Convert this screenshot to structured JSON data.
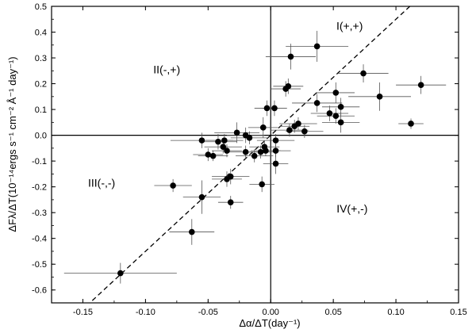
{
  "chart_data": {
    "type": "scatter",
    "title": "",
    "xlabel": "Δα/ΔT(day⁻¹)",
    "ylabel": "ΔFλ/ΔT(10⁻¹⁴ergs s⁻¹ cm⁻² Å⁻¹ day⁻¹)",
    "xlim": [
      -0.175,
      0.15
    ],
    "ylim": [
      -0.65,
      0.5
    ],
    "xticks": [
      -0.15,
      -0.1,
      -0.05,
      0.0,
      0.05,
      0.1,
      0.15
    ],
    "xtick_labels": [
      "-0.15",
      "-0.10",
      "-0.05",
      "0.00",
      "0.05",
      "0.10",
      "0.15"
    ],
    "yticks": [
      0.5,
      0.4,
      0.3,
      0.2,
      0.1,
      0.0,
      -0.1,
      -0.2,
      -0.3,
      -0.4,
      -0.5,
      -0.6
    ],
    "ytick_labels": [
      "0.5",
      "0.4",
      "0.3",
      "0.2",
      "0.1",
      "0.0",
      "-0.1",
      "-0.2",
      "-0.3",
      "-0.4",
      "-0.5",
      "-0.6"
    ],
    "zero_lines": true,
    "grid": false,
    "fit_line": {
      "style": "dashed",
      "slope": 4.5,
      "intercept": 0.0
    },
    "quadrant_labels": [
      {
        "text": "I(+,+)",
        "x": 0.063,
        "y": 0.41
      },
      {
        "text": "II(-,+)",
        "x": -0.083,
        "y": 0.24
      },
      {
        "text": "III(-,-)",
        "x": -0.135,
        "y": -0.2
      },
      {
        "text": "IV(+,-)",
        "x": 0.065,
        "y": -0.3
      }
    ],
    "points": [
      {
        "x": -0.12,
        "y": -0.535,
        "xerr": 0.045,
        "yerr": 0.04
      },
      {
        "x": -0.063,
        "y": -0.375,
        "xerr": 0.018,
        "yerr": 0.05
      },
      {
        "x": -0.078,
        "y": -0.195,
        "xerr": 0.015,
        "yerr": 0.025
      },
      {
        "x": -0.055,
        "y": -0.24,
        "xerr": 0.015,
        "yerr": 0.065
      },
      {
        "x": -0.055,
        "y": -0.02,
        "xerr": 0.025,
        "yerr": 0.03
      },
      {
        "x": -0.05,
        "y": -0.075,
        "xerr": 0.012,
        "yerr": 0.025
      },
      {
        "x": -0.046,
        "y": -0.08,
        "xerr": 0.012,
        "yerr": 0.02
      },
      {
        "x": -0.042,
        "y": -0.025,
        "xerr": 0.015,
        "yerr": 0.03
      },
      {
        "x": -0.038,
        "y": -0.045,
        "xerr": 0.015,
        "yerr": 0.025
      },
      {
        "x": -0.037,
        "y": -0.02,
        "xerr": 0.015,
        "yerr": 0.025
      },
      {
        "x": -0.035,
        "y": -0.06,
        "xerr": 0.012,
        "yerr": 0.025
      },
      {
        "x": -0.035,
        "y": -0.17,
        "xerr": 0.012,
        "yerr": 0.03
      },
      {
        "x": -0.032,
        "y": -0.16,
        "xerr": 0.015,
        "yerr": 0.03
      },
      {
        "x": -0.032,
        "y": -0.26,
        "xerr": 0.01,
        "yerr": 0.025
      },
      {
        "x": -0.027,
        "y": 0.01,
        "xerr": 0.018,
        "yerr": 0.04
      },
      {
        "x": -0.02,
        "y": 0.0,
        "xerr": 0.015,
        "yerr": 0.03
      },
      {
        "x": -0.02,
        "y": -0.065,
        "xerr": 0.015,
        "yerr": 0.025
      },
      {
        "x": -0.017,
        "y": -0.01,
        "xerr": 0.015,
        "yerr": 0.025
      },
      {
        "x": -0.013,
        "y": -0.08,
        "xerr": 0.015,
        "yerr": 0.025
      },
      {
        "x": -0.008,
        "y": -0.065,
        "xerr": 0.012,
        "yerr": 0.025
      },
      {
        "x": -0.007,
        "y": -0.19,
        "xerr": 0.01,
        "yerr": 0.03
      },
      {
        "x": -0.006,
        "y": 0.03,
        "xerr": 0.012,
        "yerr": 0.04
      },
      {
        "x": -0.005,
        "y": -0.045,
        "xerr": 0.012,
        "yerr": 0.025
      },
      {
        "x": -0.004,
        "y": -0.06,
        "xerr": 0.012,
        "yerr": 0.02
      },
      {
        "x": -0.003,
        "y": 0.105,
        "xerr": 0.01,
        "yerr": 0.03
      },
      {
        "x": 0.003,
        "y": 0.105,
        "xerr": 0.01,
        "yerr": 0.03
      },
      {
        "x": 0.004,
        "y": -0.02,
        "xerr": 0.015,
        "yerr": 0.025
      },
      {
        "x": 0.004,
        "y": -0.06,
        "xerr": 0.012,
        "yerr": 0.025
      },
      {
        "x": 0.004,
        "y": -0.11,
        "xerr": 0.01,
        "yerr": 0.04
      },
      {
        "x": 0.012,
        "y": 0.18,
        "xerr": 0.012,
        "yerr": 0.03
      },
      {
        "x": 0.014,
        "y": 0.19,
        "xerr": 0.012,
        "yerr": 0.03
      },
      {
        "x": 0.015,
        "y": 0.02,
        "xerr": 0.015,
        "yerr": 0.025
      },
      {
        "x": 0.016,
        "y": 0.305,
        "xerr": 0.02,
        "yerr": 0.05
      },
      {
        "x": 0.019,
        "y": 0.035,
        "xerr": 0.012,
        "yerr": 0.025
      },
      {
        "x": 0.022,
        "y": 0.045,
        "xerr": 0.015,
        "yerr": 0.025
      },
      {
        "x": 0.027,
        "y": 0.015,
        "xerr": 0.015,
        "yerr": 0.025
      },
      {
        "x": 0.037,
        "y": 0.345,
        "xerr": 0.025,
        "yerr": 0.06
      },
      {
        "x": 0.037,
        "y": 0.125,
        "xerr": 0.02,
        "yerr": 0.035
      },
      {
        "x": 0.047,
        "y": 0.085,
        "xerr": 0.015,
        "yerr": 0.03
      },
      {
        "x": 0.052,
        "y": 0.165,
        "xerr": 0.015,
        "yerr": 0.04
      },
      {
        "x": 0.052,
        "y": 0.075,
        "xerr": 0.015,
        "yerr": 0.03
      },
      {
        "x": 0.056,
        "y": 0.11,
        "xerr": 0.015,
        "yerr": 0.035
      },
      {
        "x": 0.056,
        "y": 0.05,
        "xerr": 0.015,
        "yerr": 0.04
      },
      {
        "x": 0.074,
        "y": 0.24,
        "xerr": 0.02,
        "yerr": 0.035
      },
      {
        "x": 0.087,
        "y": 0.15,
        "xerr": 0.025,
        "yerr": 0.055
      },
      {
        "x": 0.112,
        "y": 0.045,
        "xerr": 0.01,
        "yerr": 0.02
      },
      {
        "x": 0.12,
        "y": 0.195,
        "xerr": 0.02,
        "yerr": 0.035
      }
    ]
  }
}
